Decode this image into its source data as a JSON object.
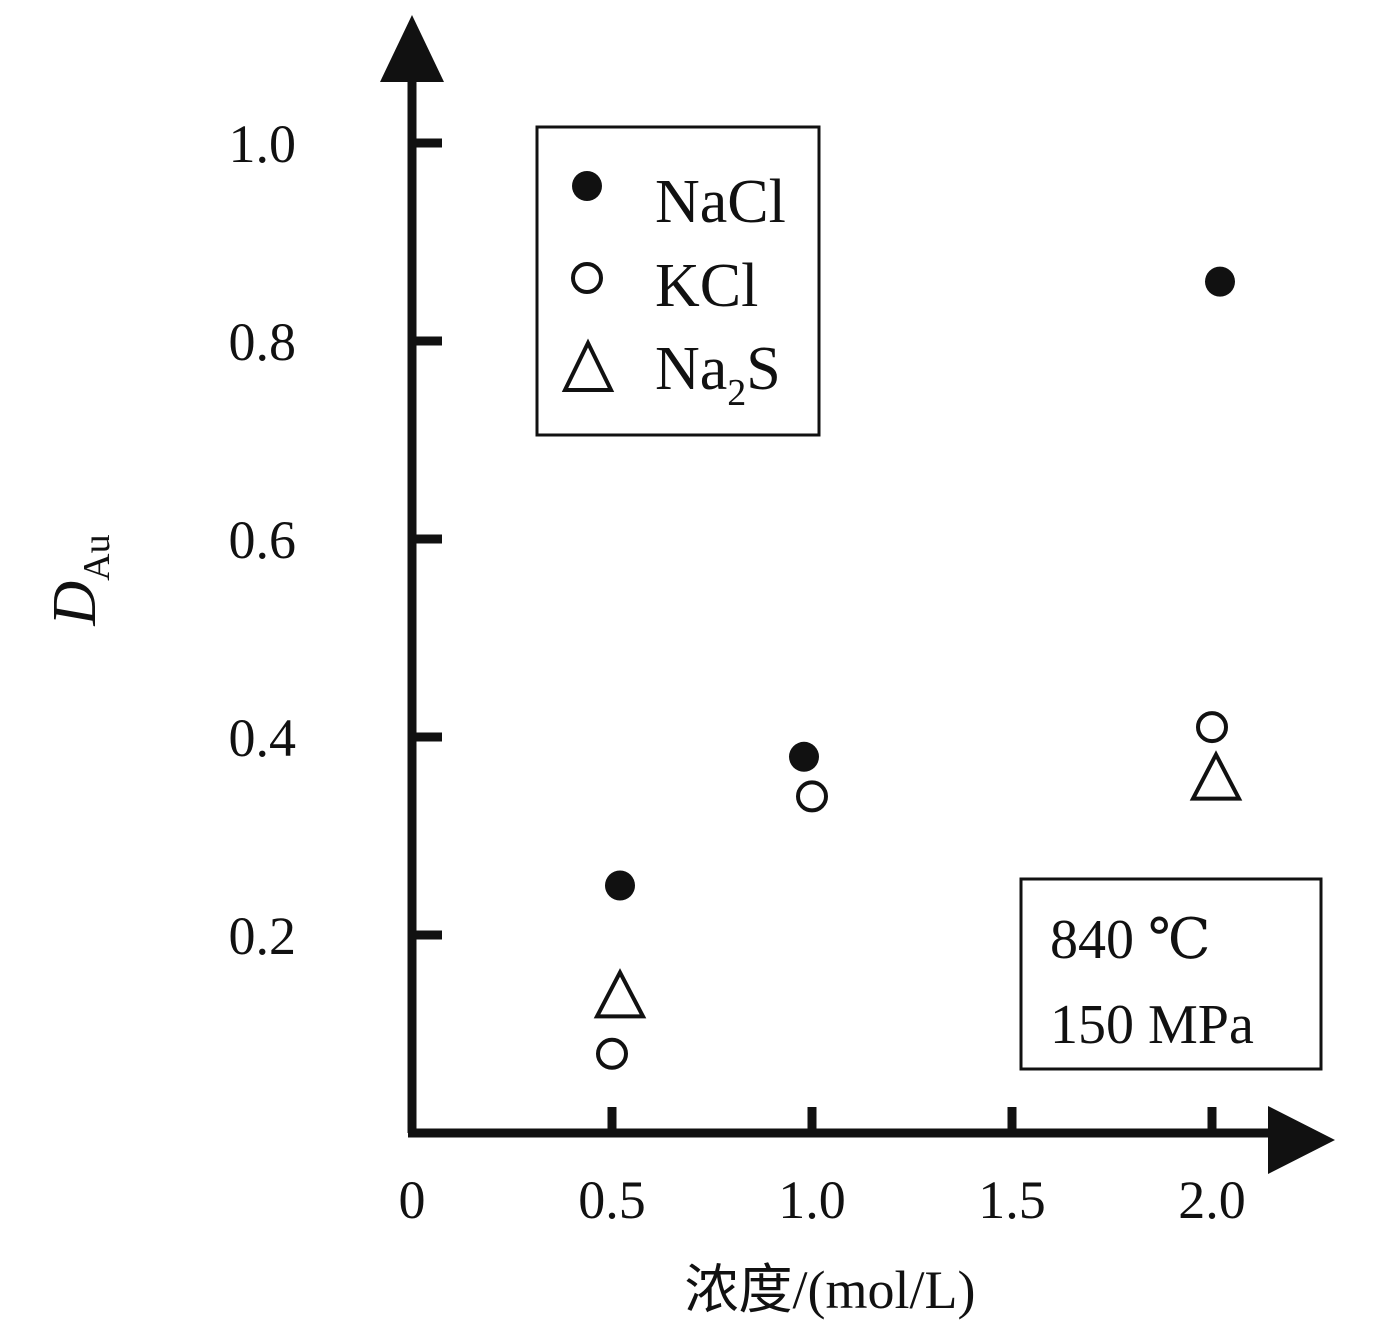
{
  "chart_data": {
    "type": "scatter",
    "xlabel": "浓度/(mol/L)",
    "ylabel_main": "D",
    "ylabel_sub": "Au",
    "xlim": [
      0,
      2.0
    ],
    "ylim": [
      0,
      1.0
    ],
    "x_ticks": [
      0.5,
      1.0,
      1.5,
      2.0
    ],
    "x_tick_labels": [
      "0",
      "0.5",
      "1.0",
      "1.5",
      "2.0"
    ],
    "y_ticks": [
      0.2,
      0.4,
      0.6,
      0.8,
      1.0
    ],
    "y_tick_labels": [
      "0.2",
      "0.4",
      "0.6",
      "0.8",
      "1.0"
    ],
    "legend_position": "top-left",
    "series": [
      {
        "name": "NaCl",
        "marker": "filled-circle",
        "points": [
          [
            0.52,
            0.25
          ],
          [
            0.98,
            0.38
          ],
          [
            2.02,
            0.86
          ]
        ]
      },
      {
        "name": "KCl",
        "marker": "open-circle",
        "points": [
          [
            0.5,
            0.08
          ],
          [
            1.0,
            0.34
          ],
          [
            2.0,
            0.41
          ]
        ]
      },
      {
        "name": "Na2S",
        "name_main": "Na",
        "name_sub": "2",
        "name_tail": "S",
        "marker": "open-triangle",
        "points": [
          [
            0.52,
            0.14
          ],
          [
            2.01,
            0.36
          ]
        ]
      }
    ],
    "annotation": {
      "line1": "840 ℃",
      "line2": "150 MPa"
    }
  }
}
